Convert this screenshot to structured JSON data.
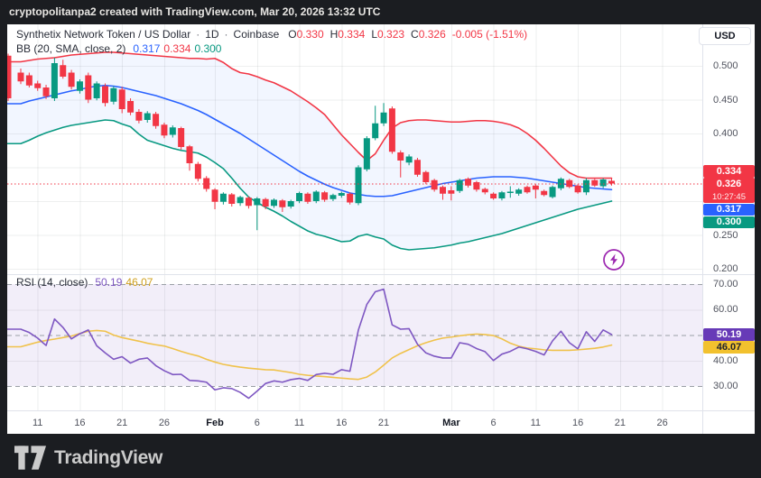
{
  "top_bar": {
    "text": "cryptopolitanpa2 created with TradingView.com, Mar 20, 2026 13:32 UTC"
  },
  "legend": {
    "symbol": "Synthetix Network Token / US Dollar",
    "separator": "·",
    "interval": "1D",
    "exchange": "Coinbase",
    "ohlc": [
      {
        "label": "O",
        "value": "0.330"
      },
      {
        "label": "H",
        "value": "0.334"
      },
      {
        "label": "L",
        "value": "0.323"
      },
      {
        "label": "C",
        "value": "0.326"
      }
    ],
    "change": "-0.005 (-1.51%)"
  },
  "bb_legend": {
    "name": "BB (20, SMA, close, 2)",
    "basis": {
      "text": "0.317",
      "color": "#2962ff"
    },
    "upper": {
      "text": "0.334",
      "color": "#f23645"
    },
    "lower": {
      "text": "0.300",
      "color": "#089981"
    }
  },
  "rsi_legend": {
    "name": "RSI (14, close)",
    "rsi": {
      "text": "50.19",
      "color": "#7e57c2"
    },
    "ma": {
      "text": "46.07",
      "color": "#cf9f1c"
    }
  },
  "axis": {
    "currency_button": "USD",
    "price_ticks": [
      {
        "label": "0.500",
        "value": 0.5
      },
      {
        "label": "0.450",
        "value": 0.45
      },
      {
        "label": "0.400",
        "value": 0.4
      },
      {
        "label": "0.250",
        "value": 0.25
      },
      {
        "label": "0.200",
        "value": 0.2
      }
    ],
    "price_gridlines": [
      0.5,
      0.45,
      0.4,
      0.35,
      0.3,
      0.25,
      0.2
    ],
    "rsi_ticks": [
      {
        "label": "70.00",
        "value": 70
      },
      {
        "label": "60.00",
        "value": 60
      },
      {
        "label": "40.00",
        "value": 40
      },
      {
        "label": "30.00",
        "value": 30
      }
    ],
    "price_badges": [
      {
        "label": "0.334",
        "value": 0.334,
        "bg": "#f23645",
        "fg": "#ffffff"
      },
      {
        "label": "0.326",
        "sub": "10:27:45",
        "value": 0.326,
        "bg": "#f23645",
        "fg": "#ffffff"
      },
      {
        "label": "0.317",
        "value": 0.317,
        "bg": "#2962ff",
        "fg": "#ffffff"
      },
      {
        "label": "0.300",
        "value": 0.3,
        "bg": "#089981",
        "fg": "#ffffff"
      }
    ],
    "rsi_badges": [
      {
        "label": "50.19",
        "value": 50.19,
        "bg": "#673ab7",
        "fg": "#ffffff"
      },
      {
        "label": "46.07",
        "value": 46.07,
        "bg": "#f2c12e",
        "fg": "#1e222d"
      }
    ]
  },
  "watermark": {
    "text": "TradingView"
  },
  "chart_data": {
    "type": "candlestick",
    "title": "Synthetix Network Token / US Dollar",
    "interval": "1D",
    "exchange": "Coinbase",
    "current": {
      "open": 0.33,
      "high": 0.334,
      "low": 0.323,
      "close": 0.326,
      "change": "-0.005",
      "change_pct": "-1.51%"
    },
    "current_price": 0.326,
    "countdown": "10:27:45",
    "price_axis_range": [
      0.19,
      0.545
    ],
    "rsi_axis_range": [
      20,
      78
    ],
    "legend_position": "top-left",
    "grid": true,
    "colors": {
      "up": "#089981",
      "down": "#f23645",
      "bb_upper": "#f23645",
      "bb_basis": "#2962ff",
      "bb_lower": "#089981",
      "bb_fill": "rgba(41,98,255,0.06)",
      "rsi": "#7e57c2",
      "rsi_ma": "#f0c24b",
      "rsi_fill": "rgba(126,87,194,0.10)",
      "level_dash": "#9aa0a6",
      "grid": "rgba(42,46,57,0.08)",
      "separator": "#e0e3eb",
      "price_line": "#f23645",
      "lightning": "#9c27b0"
    },
    "left_edge_candle": [
      0.515,
      0.518,
      0.448,
      0.452
    ],
    "candles": [
      [
        0.49,
        0.496,
        0.473,
        0.477
      ],
      [
        0.486,
        0.49,
        0.468,
        0.471
      ],
      [
        0.474,
        0.478,
        0.463,
        0.467
      ],
      [
        0.468,
        0.472,
        0.451,
        0.455
      ],
      [
        0.452,
        0.512,
        0.448,
        0.504
      ],
      [
        0.501,
        0.509,
        0.481,
        0.484
      ],
      [
        0.49,
        0.494,
        0.465,
        0.469
      ],
      [
        0.463,
        0.48,
        0.459,
        0.477
      ],
      [
        0.486,
        0.49,
        0.445,
        0.45
      ],
      [
        0.452,
        0.477,
        0.449,
        0.474
      ],
      [
        0.47,
        0.474,
        0.44,
        0.445
      ],
      [
        0.447,
        0.47,
        0.443,
        0.467
      ],
      [
        0.465,
        0.469,
        0.43,
        0.436
      ],
      [
        0.448,
        0.452,
        0.427,
        0.431
      ],
      [
        0.432,
        0.436,
        0.415,
        0.419
      ],
      [
        0.42,
        0.433,
        0.416,
        0.43
      ],
      [
        0.429,
        0.432,
        0.407,
        0.411
      ],
      [
        0.413,
        0.416,
        0.393,
        0.397
      ],
      [
        0.398,
        0.412,
        0.394,
        0.409
      ],
      [
        0.408,
        0.41,
        0.376,
        0.38
      ],
      [
        0.381,
        0.383,
        0.345,
        0.356
      ],
      [
        0.355,
        0.358,
        0.329,
        0.333
      ],
      [
        0.334,
        0.337,
        0.314,
        0.318
      ],
      [
        0.317,
        0.319,
        0.288,
        0.299
      ],
      [
        0.299,
        0.313,
        0.295,
        0.311
      ],
      [
        0.31,
        0.312,
        0.292,
        0.296
      ],
      [
        0.297,
        0.308,
        0.293,
        0.306
      ],
      [
        0.305,
        0.307,
        0.289,
        0.293
      ],
      [
        0.294,
        0.306,
        0.257,
        0.304
      ],
      [
        0.303,
        0.305,
        0.288,
        0.292
      ],
      [
        0.293,
        0.304,
        0.29,
        0.302
      ],
      [
        0.301,
        0.303,
        0.284,
        0.291
      ],
      [
        0.292,
        0.302,
        0.289,
        0.3
      ],
      [
        0.3,
        0.314,
        0.297,
        0.312
      ],
      [
        0.311,
        0.313,
        0.296,
        0.299
      ],
      [
        0.3,
        0.316,
        0.297,
        0.314
      ],
      [
        0.313,
        0.315,
        0.299,
        0.302
      ],
      [
        0.303,
        0.311,
        0.3,
        0.309
      ],
      [
        0.308,
        0.314,
        0.305,
        0.312
      ],
      [
        0.311,
        0.313,
        0.295,
        0.298
      ],
      [
        0.297,
        0.353,
        0.294,
        0.35
      ],
      [
        0.347,
        0.396,
        0.344,
        0.393
      ],
      [
        0.393,
        0.441,
        0.39,
        0.415
      ],
      [
        0.415,
        0.445,
        0.411,
        0.431
      ],
      [
        0.437,
        0.44,
        0.37,
        0.373
      ],
      [
        0.372,
        0.375,
        0.335,
        0.36
      ],
      [
        0.357,
        0.369,
        0.353,
        0.366
      ],
      [
        0.361,
        0.364,
        0.336,
        0.339
      ],
      [
        0.343,
        0.345,
        0.325,
        0.328
      ],
      [
        0.331,
        0.333,
        0.314,
        0.317
      ],
      [
        0.321,
        0.323,
        0.302,
        0.311
      ],
      [
        0.316,
        0.322,
        0.301,
        0.311
      ],
      [
        0.315,
        0.333,
        0.312,
        0.331
      ],
      [
        0.333,
        0.335,
        0.32,
        0.323
      ],
      [
        0.328,
        0.33,
        0.314,
        0.317
      ],
      [
        0.318,
        0.32,
        0.31,
        0.313
      ],
      [
        0.311,
        0.313,
        0.302,
        0.304
      ],
      [
        0.304,
        0.315,
        0.301,
        0.313
      ],
      [
        0.312,
        0.322,
        0.305,
        0.314
      ],
      [
        0.311,
        0.319,
        0.308,
        0.317
      ],
      [
        0.321,
        0.323,
        0.311,
        0.313
      ],
      [
        0.323,
        0.325,
        0.304,
        0.317
      ],
      [
        0.315,
        0.317,
        0.307,
        0.309
      ],
      [
        0.306,
        0.323,
        0.304,
        0.321
      ],
      [
        0.319,
        0.335,
        0.316,
        0.333
      ],
      [
        0.331,
        0.333,
        0.319,
        0.321
      ],
      [
        0.323,
        0.325,
        0.311,
        0.313
      ],
      [
        0.313,
        0.334,
        0.309,
        0.331
      ],
      [
        0.331,
        0.333,
        0.321,
        0.323
      ],
      [
        0.322,
        0.334,
        0.319,
        0.332
      ],
      [
        0.33,
        0.334,
        0.323,
        0.326
      ]
    ],
    "bb": {
      "period": 20,
      "ma_type": "SMA",
      "source": "close",
      "stdev": 2,
      "upper": [
        0.506,
        0.508,
        0.51,
        0.511,
        0.512,
        0.514,
        0.516,
        0.517,
        0.518,
        0.519,
        0.52,
        0.52,
        0.519,
        0.518,
        0.517,
        0.516,
        0.515,
        0.514,
        0.513,
        0.512,
        0.511,
        0.511,
        0.51,
        0.511,
        0.505,
        0.496,
        0.49,
        0.488,
        0.484,
        0.479,
        0.475,
        0.469,
        0.463,
        0.455,
        0.447,
        0.438,
        0.428,
        0.413,
        0.398,
        0.385,
        0.372,
        0.36,
        0.37,
        0.39,
        0.408,
        0.416,
        0.419,
        0.42,
        0.42,
        0.419,
        0.418,
        0.417,
        0.417,
        0.418,
        0.419,
        0.419,
        0.418,
        0.416,
        0.413,
        0.408,
        0.4,
        0.39,
        0.378,
        0.365,
        0.352,
        0.342,
        0.336,
        0.334,
        0.334,
        0.334,
        0.334
      ],
      "basis": [
        0.444,
        0.448,
        0.451,
        0.454,
        0.457,
        0.46,
        0.463,
        0.465,
        0.468,
        0.47,
        0.471,
        0.47,
        0.468,
        0.465,
        0.462,
        0.459,
        0.456,
        0.452,
        0.448,
        0.444,
        0.439,
        0.434,
        0.428,
        0.421,
        0.414,
        0.407,
        0.4,
        0.392,
        0.384,
        0.376,
        0.368,
        0.36,
        0.352,
        0.344,
        0.337,
        0.331,
        0.325,
        0.32,
        0.316,
        0.312,
        0.31,
        0.308,
        0.307,
        0.307,
        0.308,
        0.311,
        0.314,
        0.317,
        0.32,
        0.323,
        0.326,
        0.328,
        0.33,
        0.332,
        0.334,
        0.335,
        0.336,
        0.336,
        0.336,
        0.335,
        0.334,
        0.332,
        0.33,
        0.328,
        0.326,
        0.324,
        0.322,
        0.32,
        0.319,
        0.318,
        0.317
      ],
      "lower": [
        0.385,
        0.39,
        0.396,
        0.401,
        0.405,
        0.409,
        0.412,
        0.414,
        0.416,
        0.418,
        0.42,
        0.419,
        0.414,
        0.41,
        0.399,
        0.39,
        0.386,
        0.382,
        0.378,
        0.375,
        0.373,
        0.371,
        0.365,
        0.357,
        0.348,
        0.334,
        0.319,
        0.306,
        0.298,
        0.291,
        0.285,
        0.278,
        0.27,
        0.263,
        0.256,
        0.251,
        0.248,
        0.244,
        0.24,
        0.241,
        0.248,
        0.251,
        0.247,
        0.244,
        0.235,
        0.23,
        0.228,
        0.229,
        0.23,
        0.231,
        0.233,
        0.235,
        0.238,
        0.24,
        0.243,
        0.246,
        0.249,
        0.252,
        0.256,
        0.26,
        0.264,
        0.268,
        0.272,
        0.276,
        0.28,
        0.284,
        0.288,
        0.291,
        0.294,
        0.297,
        0.3
      ],
      "current": {
        "basis": 0.317,
        "upper": 0.334,
        "lower": 0.3
      }
    },
    "rsi": {
      "period": 14,
      "source": "close",
      "levels": [
        70,
        50,
        30
      ],
      "current": 50.19,
      "ma_current": 46.07,
      "values": [
        52.3,
        51.0,
        48.8,
        45.9,
        56.3,
        53.0,
        48.5,
        50.5,
        52.0,
        45.8,
        43.0,
        40.5,
        41.5,
        39.0,
        40.5,
        41.0,
        38.0,
        36.0,
        34.5,
        34.6,
        32.2,
        32.0,
        31.5,
        28.5,
        29.3,
        29.0,
        27.5,
        25.2,
        28.0,
        31.0,
        32.0,
        31.5,
        32.5,
        33.0,
        32.2,
        34.5,
        35.0,
        34.6,
        36.4,
        35.8,
        52.0,
        62.0,
        67.0,
        68.0,
        54.0,
        52.3,
        52.5,
        46.4,
        43.0,
        41.7,
        41.0,
        41.0,
        47.0,
        46.4,
        44.7,
        43.5,
        40.0,
        42.5,
        43.6,
        45.3,
        44.6,
        43.6,
        42.2,
        47.7,
        51.5,
        47.0,
        44.6,
        51.3,
        47.5,
        52.0,
        50.19
      ],
      "ma": [
        45.4,
        46.3,
        47.2,
        47.9,
        48.4,
        49.0,
        49.6,
        50.6,
        51.5,
        51.8,
        51.5,
        50.0,
        49.0,
        48.3,
        47.6,
        46.8,
        46.2,
        45.7,
        44.7,
        43.6,
        42.6,
        41.8,
        40.5,
        39.4,
        38.5,
        37.9,
        37.4,
        37.0,
        36.7,
        36.4,
        36.3,
        35.8,
        35.3,
        34.6,
        34.2,
        33.9,
        33.7,
        33.4,
        33.1,
        32.8,
        32.6,
        33.5,
        35.5,
        38.2,
        41.0,
        42.8,
        44.3,
        45.8,
        47.0,
        48.0,
        48.8,
        49.2,
        49.7,
        50.1,
        50.4,
        50.2,
        49.8,
        48.5,
        46.8,
        45.6,
        44.9,
        44.6,
        44.2,
        44.0,
        44.0,
        44.0,
        44.2,
        44.5,
        44.8,
        45.3,
        46.07
      ]
    },
    "time_ticks": [
      {
        "label": "11",
        "i": 2,
        "bold": false
      },
      {
        "label": "16",
        "i": 7,
        "bold": false
      },
      {
        "label": "21",
        "i": 12,
        "bold": false
      },
      {
        "label": "26",
        "i": 17,
        "bold": false
      },
      {
        "label": "Feb",
        "i": 23,
        "bold": true
      },
      {
        "label": "6",
        "i": 28,
        "bold": false
      },
      {
        "label": "11",
        "i": 33,
        "bold": false
      },
      {
        "label": "16",
        "i": 38,
        "bold": false
      },
      {
        "label": "21",
        "i": 43,
        "bold": false
      },
      {
        "label": "Mar",
        "i": 51,
        "bold": true
      },
      {
        "label": "6",
        "i": 56,
        "bold": false
      },
      {
        "label": "11",
        "i": 61,
        "bold": false
      },
      {
        "label": "16",
        "i": 66,
        "bold": false
      },
      {
        "label": "21",
        "i": 71,
        "bold": false
      },
      {
        "label": "26",
        "i": 76,
        "bold": false
      }
    ]
  }
}
